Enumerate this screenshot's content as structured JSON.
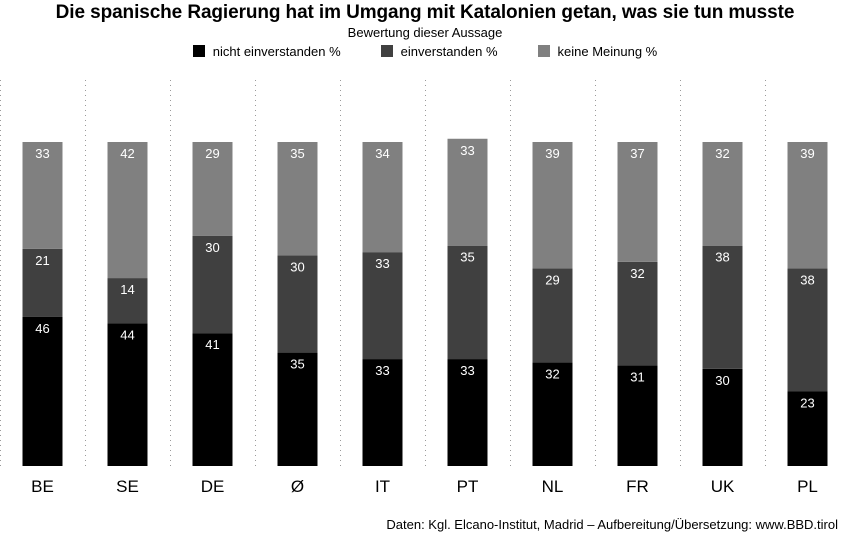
{
  "chart_data": {
    "type": "bar",
    "stacked": true,
    "title": "Die spanische Ragierung hat im Umgang mit Katalonien getan, was sie tun musste",
    "subtitle": "Bewertung dieser Aussage",
    "categories": [
      "BE",
      "SE",
      "DE",
      "Ø",
      "IT",
      "PT",
      "NL",
      "FR",
      "UK",
      "PL"
    ],
    "series": [
      {
        "name": "nicht einverstanden %",
        "color": "#000000",
        "values": [
          46,
          44,
          41,
          35,
          33,
          33,
          32,
          31,
          30,
          23
        ]
      },
      {
        "name": "einverstanden %",
        "color": "#404040",
        "values": [
          21,
          14,
          30,
          30,
          33,
          35,
          29,
          32,
          38,
          38
        ]
      },
      {
        "name": "keine Meinung %",
        "color": "#808080",
        "values": [
          33,
          42,
          29,
          35,
          34,
          33,
          39,
          37,
          32,
          39
        ]
      }
    ],
    "ylim": [
      0,
      100
    ],
    "grid": "vertical dotted",
    "legend_position": "top"
  },
  "source": "Daten: Kgl. Elcano-Institut, Madrid – Aufbereitung/Übersetzung: www.BBD.tirol"
}
